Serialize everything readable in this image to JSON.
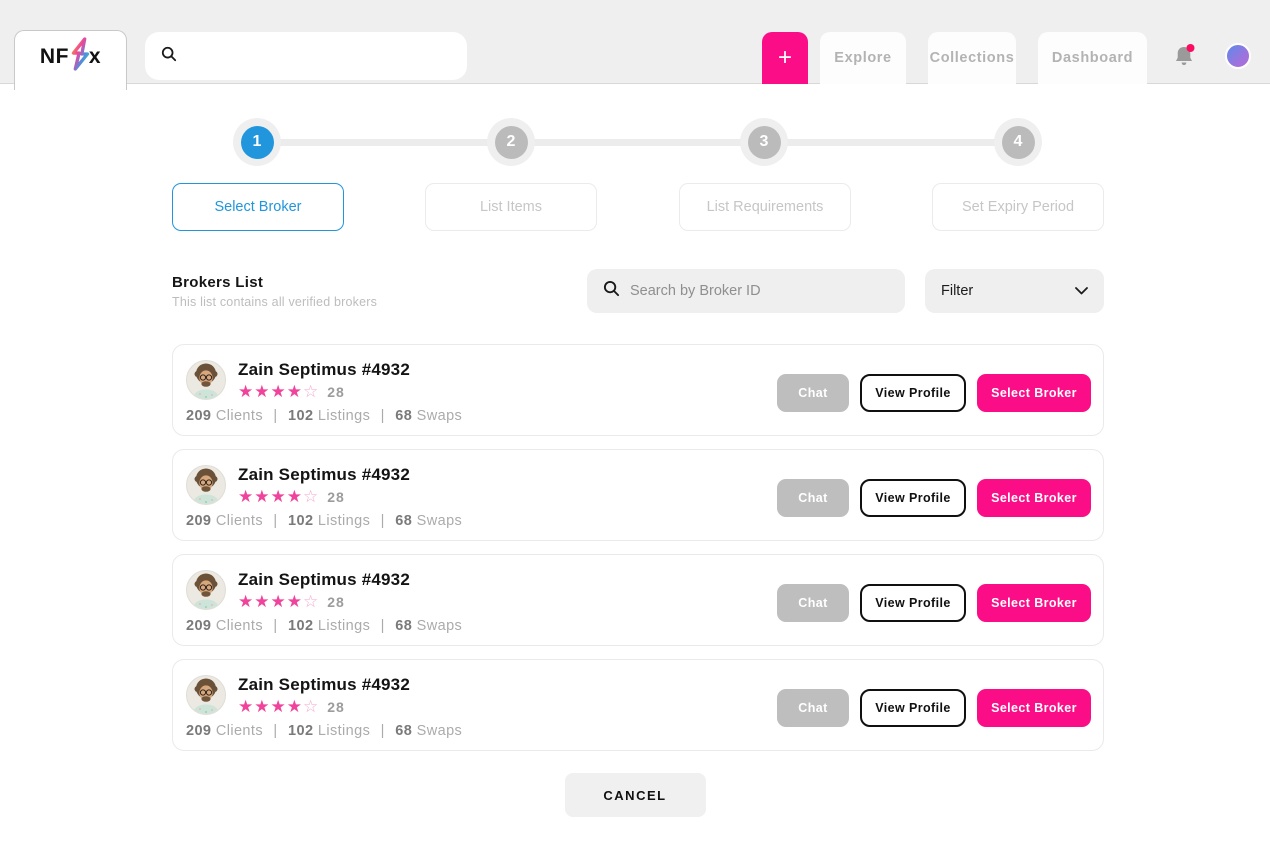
{
  "colors": {
    "accent_pink": "#FA0D87",
    "accent_blue": "#2196DC",
    "star_pink": "#F0439B"
  },
  "topbar": {
    "logo_prefix": "NF",
    "logo_suffix": "x",
    "add_button_label": "+",
    "nav_items": [
      {
        "label": "Explore"
      },
      {
        "label": "Collections"
      },
      {
        "label": "Dashboard"
      }
    ]
  },
  "stepper": {
    "steps": [
      {
        "number": "1",
        "label": "Select Broker",
        "state": "active"
      },
      {
        "number": "2",
        "label": "List Items",
        "state": "upcoming"
      },
      {
        "number": "3",
        "label": "List Requirements",
        "state": "upcoming"
      },
      {
        "number": "4",
        "label": "Set Expiry Period",
        "state": "upcoming"
      }
    ]
  },
  "brokers_section": {
    "title": "Brokers List",
    "subtitle": "This list contains all verified brokers",
    "search_placeholder": "Search by Broker ID",
    "filter_label": "Filter",
    "brokers": [
      {
        "name": "Zain Septimus #4932",
        "rating": 4,
        "rating_count": "28",
        "separator": "|",
        "stats": {
          "clients_value": "209",
          "clients_label": "Clients",
          "listings_value": "102",
          "listings_label": "Listings",
          "swaps_value": "68",
          "swaps_label": "Swaps"
        },
        "actions": {
          "chat": "Chat",
          "view_profile": "View Profile",
          "select": "Select Broker"
        }
      },
      {
        "name": "Zain Septimus #4932",
        "rating": 4,
        "rating_count": "28",
        "separator": "|",
        "stats": {
          "clients_value": "209",
          "clients_label": "Clients",
          "listings_value": "102",
          "listings_label": "Listings",
          "swaps_value": "68",
          "swaps_label": "Swaps"
        },
        "actions": {
          "chat": "Chat",
          "view_profile": "View Profile",
          "select": "Select Broker"
        }
      },
      {
        "name": "Zain Septimus #4932",
        "rating": 4,
        "rating_count": "28",
        "separator": "|",
        "stats": {
          "clients_value": "209",
          "clients_label": "Clients",
          "listings_value": "102",
          "listings_label": "Listings",
          "swaps_value": "68",
          "swaps_label": "Swaps"
        },
        "actions": {
          "chat": "Chat",
          "view_profile": "View Profile",
          "select": "Select Broker"
        }
      },
      {
        "name": "Zain Septimus #4932",
        "rating": 4,
        "rating_count": "28",
        "separator": "|",
        "stats": {
          "clients_value": "209",
          "clients_label": "Clients",
          "listings_value": "102",
          "listings_label": "Listings",
          "swaps_value": "68",
          "swaps_label": "Swaps"
        },
        "actions": {
          "chat": "Chat",
          "view_profile": "View Profile",
          "select": "Select Broker"
        }
      }
    ]
  },
  "footer": {
    "cancel_label": "CANCEL"
  }
}
